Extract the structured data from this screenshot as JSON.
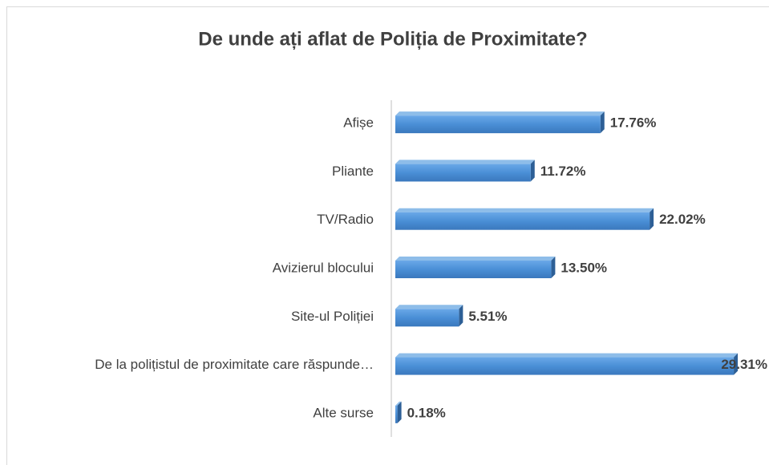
{
  "chart_data": {
    "type": "bar",
    "orientation": "horizontal",
    "title": "De unde ați aflat de Poliția de Proximitate?",
    "categories": [
      "Afișe",
      "Pliante",
      "TV/Radio",
      "Avizierul blocului",
      "Site-ul Poliției",
      "De la polițistul de proximitate care răspunde…",
      "Alte surse"
    ],
    "values": [
      17.76,
      11.72,
      22.02,
      13.5,
      5.51,
      29.31,
      0.18
    ],
    "value_labels": [
      "17.76%",
      "11.72%",
      "22.02%",
      "13.50%",
      "5.51%",
      "29.31%",
      "0.18%"
    ],
    "color": "#4a8fd6",
    "xlim": [
      0,
      30
    ]
  }
}
